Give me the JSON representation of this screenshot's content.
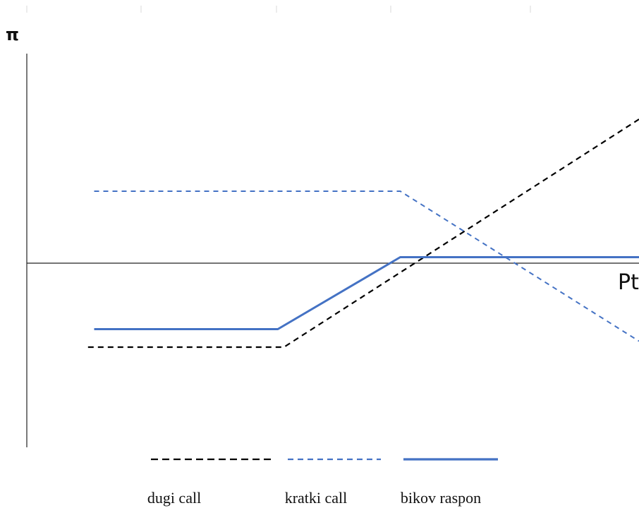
{
  "chart_data": {
    "type": "line",
    "title": "",
    "xlabel": "Pt",
    "ylabel": "π",
    "grid": false,
    "legend_position": "bottom",
    "xlim": [
      0,
      100
    ],
    "ylim": [
      -30,
      35
    ],
    "series": [
      {
        "name": "dugi call",
        "style": "dashed",
        "color": "#000000",
        "points": [
          [
            10,
            -14
          ],
          [
            42,
            -14
          ],
          [
            100,
            24
          ]
        ]
      },
      {
        "name": "kratki call",
        "style": "dashed",
        "color": "#4472C4",
        "points": [
          [
            11,
            12
          ],
          [
            61,
            12
          ],
          [
            100,
            -13
          ]
        ]
      },
      {
        "name": "bikov raspon",
        "style": "solid",
        "color": "#4472C4",
        "points": [
          [
            11,
            -11
          ],
          [
            41,
            -11
          ],
          [
            61,
            1
          ],
          [
            100,
            1
          ]
        ]
      }
    ]
  }
}
